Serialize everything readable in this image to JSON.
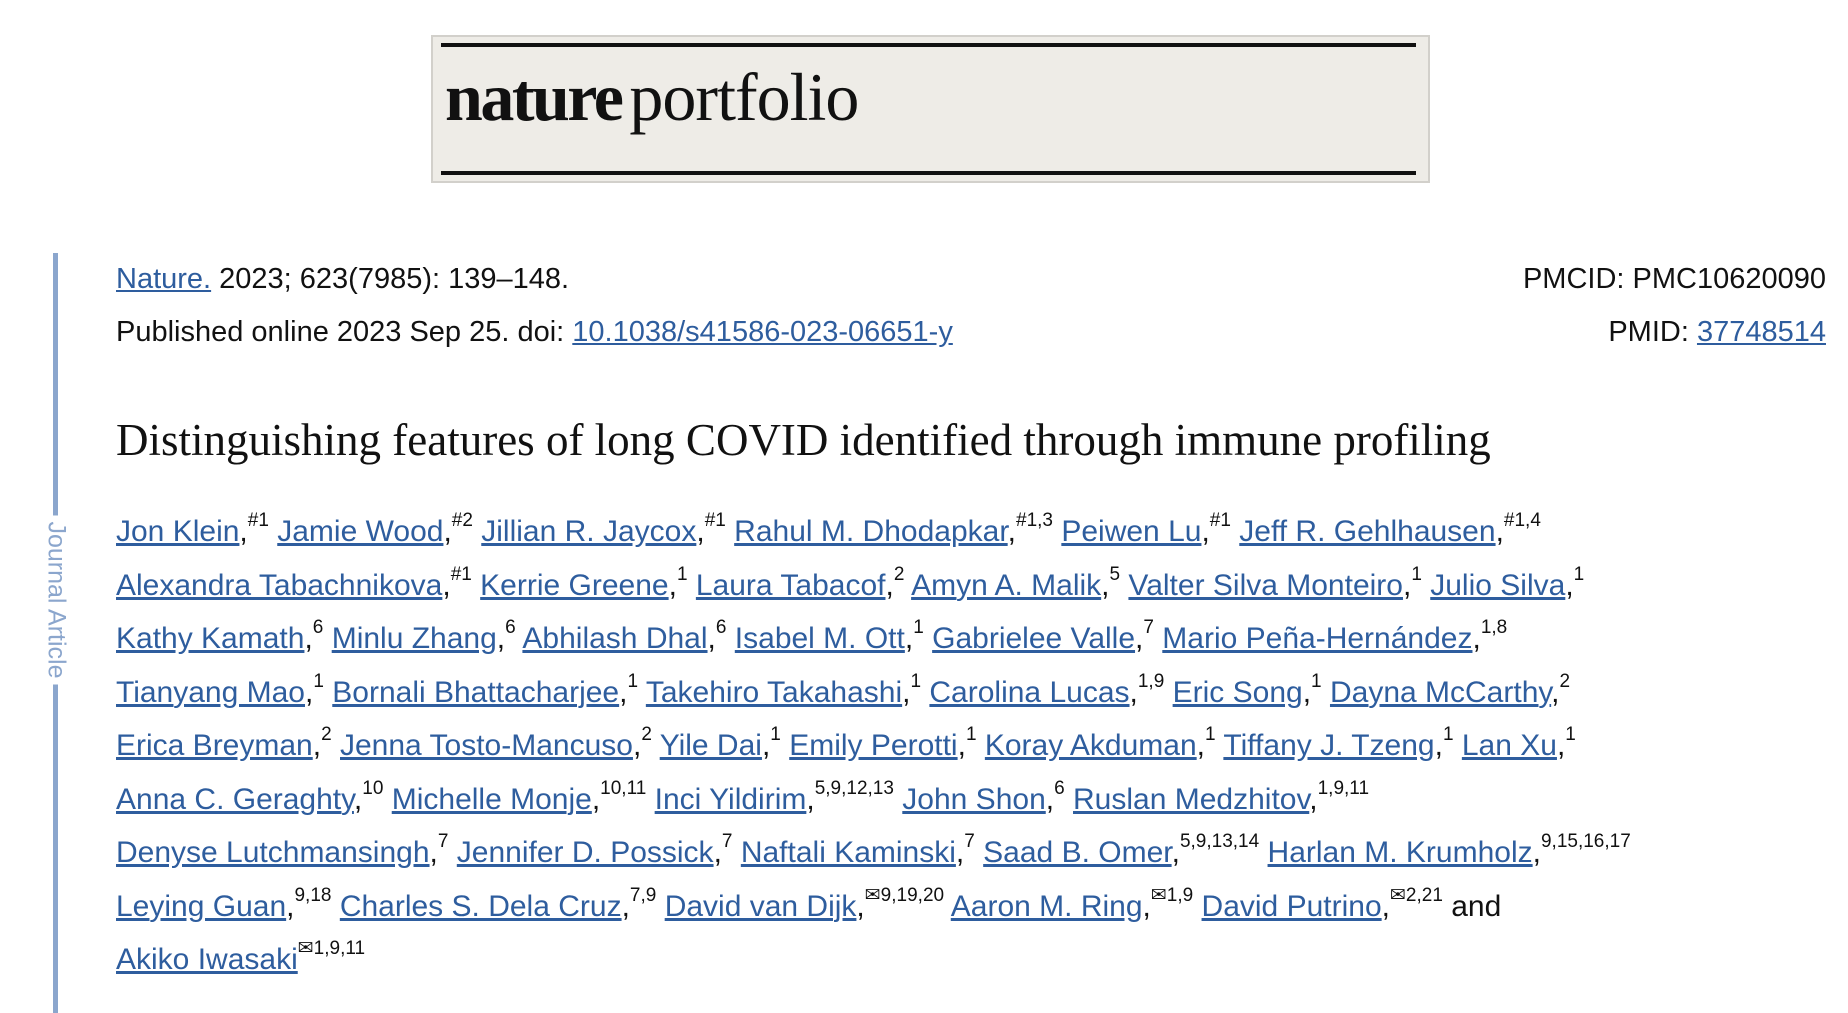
{
  "logo": {
    "word1": "nature",
    "word2": "portfolio"
  },
  "side_label": "Journal Article",
  "citation": {
    "journal": "Nature.",
    "details": " 2023; 623(7985): 139–148.",
    "published_prefix": "Published online 2023 Sep 25. doi: ",
    "doi": "10.1038/s41586-023-06651-y",
    "pmcid": "PMCID: PMC10620090",
    "pmid_label": "PMID: ",
    "pmid": "37748514"
  },
  "title": "Distinguishing features of long COVID identified through immune profiling",
  "authors_lines": [
    [
      {
        "name": "Jon Klein",
        "sup": "#1"
      },
      {
        "name": "Jamie Wood",
        "sup": "#2"
      },
      {
        "name": "Jillian R. Jaycox",
        "sup": "#1"
      },
      {
        "name": "Rahul M. Dhodapkar",
        "sup": "#1,3"
      },
      {
        "name": "Peiwen Lu",
        "sup": "#1"
      },
      {
        "name": "Jeff R. Gehlhausen",
        "sup": "#1,4"
      }
    ],
    [
      {
        "name": "Alexandra Tabachnikova",
        "sup": "#1"
      },
      {
        "name": "Kerrie Greene",
        "sup": "1"
      },
      {
        "name": "Laura Tabacof",
        "sup": "2"
      },
      {
        "name": "Amyn A. Malik",
        "sup": "5"
      },
      {
        "name": "Valter Silva Monteiro",
        "sup": "1"
      },
      {
        "name": "Julio Silva",
        "sup": "1"
      }
    ],
    [
      {
        "name": "Kathy Kamath",
        "sup": "6"
      },
      {
        "name": "Minlu Zhang",
        "sup": "6"
      },
      {
        "name": "Abhilash Dhal",
        "sup": "6"
      },
      {
        "name": "Isabel M. Ott",
        "sup": "1"
      },
      {
        "name": "Gabrielee Valle",
        "sup": "7"
      },
      {
        "name": "Mario Peña-Hernández",
        "sup": "1,8"
      }
    ],
    [
      {
        "name": "Tianyang Mao",
        "sup": "1"
      },
      {
        "name": "Bornali Bhattacharjee",
        "sup": "1"
      },
      {
        "name": "Takehiro Takahashi",
        "sup": "1"
      },
      {
        "name": "Carolina Lucas",
        "sup": "1,9"
      },
      {
        "name": "Eric Song",
        "sup": "1"
      },
      {
        "name": "Dayna McCarthy",
        "sup": "2"
      }
    ],
    [
      {
        "name": "Erica Breyman",
        "sup": "2"
      },
      {
        "name": "Jenna Tosto-Mancuso",
        "sup": "2"
      },
      {
        "name": "Yile Dai",
        "sup": "1"
      },
      {
        "name": "Emily Perotti",
        "sup": "1"
      },
      {
        "name": "Koray Akduman",
        "sup": "1"
      },
      {
        "name": "Tiffany J. Tzeng",
        "sup": "1"
      },
      {
        "name": "Lan Xu",
        "sup": "1"
      }
    ],
    [
      {
        "name": "Anna C. Geraghty",
        "sup": "10"
      },
      {
        "name": "Michelle Monje",
        "sup": "10,11"
      },
      {
        "name": "Inci Yildirim",
        "sup": "5,9,12,13"
      },
      {
        "name": "John Shon",
        "sup": "6"
      },
      {
        "name": "Ruslan Medzhitov",
        "sup": "1,9,11"
      }
    ],
    [
      {
        "name": "Denyse Lutchmansingh",
        "sup": "7"
      },
      {
        "name": "Jennifer D. Possick",
        "sup": "7"
      },
      {
        "name": "Naftali Kaminski",
        "sup": "7"
      },
      {
        "name": "Saad B. Omer",
        "sup": "5,9,13,14"
      },
      {
        "name": "Harlan M. Krumholz",
        "sup": "9,15,16,17"
      }
    ],
    [
      {
        "name": "Leying Guan",
        "sup": "9,18"
      },
      {
        "name": "Charles S. Dela Cruz",
        "sup": "7,9"
      },
      {
        "name": "David van Dijk",
        "sup": "✉9,19,20"
      },
      {
        "name": "Aaron M. Ring",
        "sup": "✉1,9"
      },
      {
        "name": "David Putrino",
        "sup": "✉2,21"
      }
    ],
    [
      {
        "name": "Akiko Iwasaki",
        "sup": "✉1,9,11"
      }
    ]
  ],
  "conjunction": "and",
  "colors": {
    "link": "#2e5d9e",
    "sidebar": "#8ba6cd",
    "logo_bg": "#eeece7"
  },
  "icons": {
    "corresponding_author": "envelope-icon"
  }
}
